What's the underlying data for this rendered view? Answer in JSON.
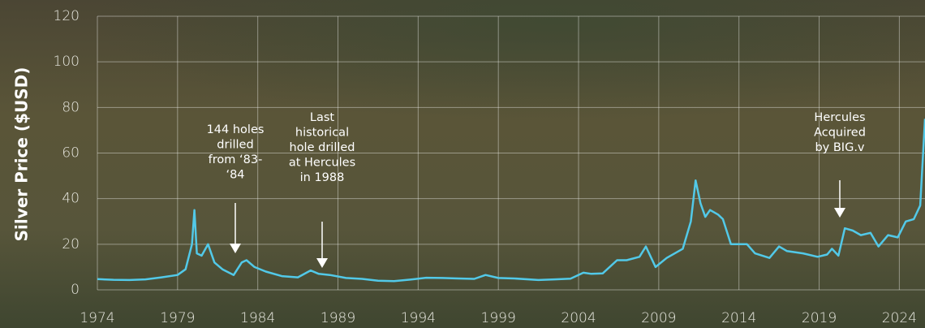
{
  "chart_data": {
    "type": "line",
    "y_label": "Silver Price ($USD)",
    "xlim": [
      1974,
      2025.6
    ],
    "xticks": [
      1974,
      1979,
      1984,
      1989,
      1994,
      1999,
      2004,
      2009,
      2014,
      2019,
      2024
    ],
    "ylim": [
      0,
      120
    ],
    "yticks": [
      0,
      20,
      40,
      60,
      80,
      100,
      120
    ],
    "grid": true,
    "x": [
      1974,
      1975,
      1976,
      1977,
      1978,
      1979,
      1979.5,
      1979.9,
      1980.05,
      1980.2,
      1980.5,
      1980.9,
      1981.3,
      1981.8,
      1982.5,
      1983.0,
      1983.3,
      1983.8,
      1984.5,
      1985.5,
      1986.5,
      1987.3,
      1987.8,
      1988.5,
      1989.5,
      1990.5,
      1991.5,
      1992.5,
      1993.5,
      1994.5,
      1995.5,
      1996.5,
      1997.5,
      1998.2,
      1999,
      2000,
      2001.5,
      2002.5,
      2003.5,
      2004.3,
      2004.8,
      2005.5,
      2006.4,
      2007,
      2007.8,
      2008.2,
      2008.8,
      2009.5,
      2010.5,
      2011.0,
      2011.3,
      2011.6,
      2011.9,
      2012.2,
      2012.7,
      2013.0,
      2013.5,
      2014,
      2014.5,
      2015,
      2015.9,
      2016.5,
      2017,
      2018,
      2018.9,
      2019.5,
      2019.8,
      2020.2,
      2020.6,
      2021.1,
      2021.6,
      2022.2,
      2022.7,
      2023.3,
      2023.9,
      2024.4,
      2024.9,
      2025.3,
      2025.6
    ],
    "series": [
      {
        "name": "Silver",
        "color": "#52c9e8",
        "values": [
          4.7,
          4.4,
          4.3,
          4.6,
          5.5,
          6.5,
          9,
          20,
          35,
          16,
          15,
          20,
          12,
          9,
          6.5,
          12,
          13,
          10,
          8,
          6,
          5.5,
          8.5,
          7,
          6.5,
          5.2,
          4.8,
          4.0,
          3.8,
          4.5,
          5.3,
          5.2,
          5.0,
          4.8,
          6.5,
          5.2,
          5.0,
          4.3,
          4.6,
          4.9,
          7.5,
          7.0,
          7.2,
          13,
          13,
          14.5,
          19,
          10,
          14,
          18,
          30,
          48,
          38,
          32,
          35,
          33,
          31,
          20,
          20,
          20,
          16,
          14,
          19,
          17,
          16,
          14.5,
          15.5,
          18,
          15,
          27,
          26,
          24,
          25,
          19,
          24,
          23,
          30,
          31,
          37,
          75
        ]
      }
    ],
    "annotations": [
      {
        "lines": [
          "144 holes",
          "drilled",
          "from ‘83-",
          "‘84"
        ]
      },
      {
        "lines": [
          "Last",
          "historical",
          "hole drilled",
          "at Hercules",
          "in 1988"
        ]
      },
      {
        "lines": [
          "Hercules",
          "Acquired",
          "by BIG.v"
        ]
      }
    ]
  }
}
